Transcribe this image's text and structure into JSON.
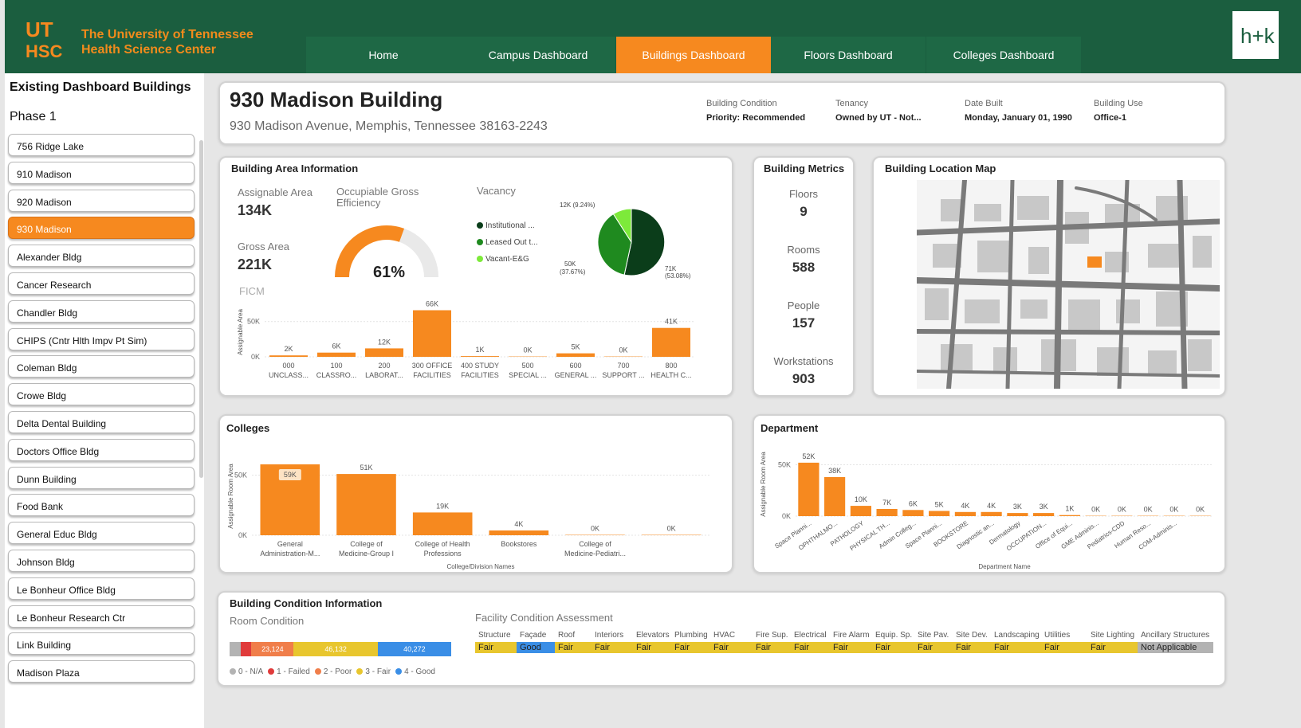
{
  "header": {
    "org_name_line1": "The University of Tennessee",
    "org_name_line2": "Health Science Center",
    "logo_text_top": "UT",
    "logo_text_bottom": "HSC",
    "hok_logo": "h+k",
    "nav": [
      {
        "label": "Home",
        "active": false
      },
      {
        "label": "Campus Dashboard",
        "active": false
      },
      {
        "label": "Buildings Dashboard",
        "active": true
      },
      {
        "label": "Floors Dashboard",
        "active": false
      },
      {
        "label": "Colleges Dashboard",
        "active": false
      }
    ]
  },
  "sidebar": {
    "title": "Existing Dashboard Buildings",
    "phase": "Phase 1",
    "items": [
      {
        "label": "756 Ridge Lake",
        "active": false
      },
      {
        "label": "910 Madison",
        "active": false
      },
      {
        "label": "920 Madison",
        "active": false
      },
      {
        "label": "930 Madison",
        "active": true
      },
      {
        "label": "Alexander Bldg",
        "active": false
      },
      {
        "label": "Cancer Research",
        "active": false
      },
      {
        "label": "Chandler Bldg",
        "active": false
      },
      {
        "label": "CHIPS (Cntr Hlth Impv Pt Sim)",
        "active": false
      },
      {
        "label": "Coleman Bldg",
        "active": false
      },
      {
        "label": "Crowe Bldg",
        "active": false
      },
      {
        "label": "Delta Dental Building",
        "active": false
      },
      {
        "label": "Doctors Office Bldg",
        "active": false
      },
      {
        "label": "Dunn Building",
        "active": false
      },
      {
        "label": "Food Bank",
        "active": false
      },
      {
        "label": "General Educ Bldg",
        "active": false
      },
      {
        "label": "Johnson Bldg",
        "active": false
      },
      {
        "label": "Le Bonheur Office Bldg",
        "active": false
      },
      {
        "label": "Le Bonheur Research Ctr",
        "active": false
      },
      {
        "label": "Link Building",
        "active": false
      },
      {
        "label": "Madison Plaza",
        "active": false
      }
    ]
  },
  "building": {
    "name": "930 Madison Building",
    "address": "930 Madison Avenue, Memphis, Tennessee 38163-2243",
    "condition_label": "Building Condition",
    "condition_value": "Priority: Recommended",
    "tenancy_label": "Tenancy",
    "tenancy_value": "Owned by UT - Not...",
    "date_label": "Date Built",
    "date_value": "Monday, January 01, 1990",
    "use_label": "Building Use",
    "use_value": "Office-1"
  },
  "area": {
    "title": "Building Area Information",
    "assignable_label": "Assignable Area",
    "assignable_value": "134K",
    "gross_label": "Gross Area",
    "gross_value": "221K",
    "efficiency_label": "Occupiable Gross Efficiency",
    "efficiency_value": "61%",
    "efficiency_fraction": 0.61,
    "vacancy_label": "Vacancy",
    "vacancy_legend": [
      {
        "label": "Institutional ...",
        "color": "#0b3d1a"
      },
      {
        "label": "Leased Out t...",
        "color": "#1f8a1f"
      },
      {
        "label": "Vacant-E&G",
        "color": "#7dea3a"
      }
    ],
    "vacancy_slices": [
      {
        "value": 71,
        "label": "71K",
        "pct": "(53.08%)",
        "color": "#0b3d1a"
      },
      {
        "value": 50,
        "label": "50K",
        "pct": "(37.67%)",
        "color": "#1f8a1f"
      },
      {
        "value": 12,
        "label": "12K (9.24%)",
        "color": "#7dea3a"
      }
    ],
    "ficm_label": "FICM"
  },
  "metrics": {
    "title": "Building Metrics",
    "floors_label": "Floors",
    "floors_value": "9",
    "rooms_label": "Rooms",
    "rooms_value": "588",
    "people_label": "People",
    "people_value": "157",
    "workstations_label": "Workstations",
    "workstations_value": "903"
  },
  "map": {
    "title": "Building Location Map"
  },
  "colleges": {
    "title": "Colleges"
  },
  "department": {
    "title": "Department"
  },
  "condition": {
    "title": "Building Condition Information",
    "room_condition_label": "Room Condition",
    "room_bar": [
      {
        "value": 6000,
        "label": "",
        "color": "#b3b3b3"
      },
      {
        "value": 6000,
        "label": "",
        "color": "#e03b3b"
      },
      {
        "value": 23124,
        "label": "23,124",
        "color": "#f07e4a"
      },
      {
        "value": 46132,
        "label": "46,132",
        "color": "#e8c62e"
      },
      {
        "value": 40272,
        "label": "40,272",
        "color": "#3a8ee6"
      }
    ],
    "room_legend": [
      {
        "label": "0 - N/A",
        "color": "#b3b3b3"
      },
      {
        "label": "1 - Failed",
        "color": "#e03b3b"
      },
      {
        "label": "2 - Poor",
        "color": "#f07e4a"
      },
      {
        "label": "3 - Fair",
        "color": "#e8c62e"
      },
      {
        "label": "4 - Good",
        "color": "#3a8ee6"
      }
    ],
    "fca_label": "Facility Condition Assessment",
    "fca": [
      {
        "header": "Structure",
        "value": "Fair",
        "color": "#e8c62e"
      },
      {
        "header": "Façade",
        "value": "Good",
        "color": "#3a8ee6"
      },
      {
        "header": "Roof",
        "value": "Fair",
        "color": "#e8c62e"
      },
      {
        "header": "Interiors",
        "value": "Fair",
        "color": "#e8c62e"
      },
      {
        "header": "Elevators",
        "value": "Fair",
        "color": "#e8c62e"
      },
      {
        "header": "Plumbing",
        "value": "Fair",
        "color": "#e8c62e"
      },
      {
        "header": "HVAC",
        "value": "Fair",
        "color": "#e8c62e"
      },
      {
        "header": "Fire Sup.",
        "value": "Fair",
        "color": "#e8c62e"
      },
      {
        "header": "Electrical",
        "value": "Fair",
        "color": "#e8c62e"
      },
      {
        "header": "Fire Alarm",
        "value": "Fair",
        "color": "#e8c62e"
      },
      {
        "header": "Equip. Sp.",
        "value": "Fair",
        "color": "#e8c62e"
      },
      {
        "header": "Site Pav.",
        "value": "Fair",
        "color": "#e8c62e"
      },
      {
        "header": "Site Dev.",
        "value": "Fair",
        "color": "#e8c62e"
      },
      {
        "header": "Landscaping",
        "value": "Fair",
        "color": "#e8c62e"
      },
      {
        "header": "Utilities",
        "value": "Fair",
        "color": "#e8c62e"
      },
      {
        "header": "Site Lighting",
        "value": "Fair",
        "color": "#e8c62e"
      },
      {
        "header": "Ancillary Structures",
        "value": "Not Applicable",
        "color": "#b3b3b3"
      }
    ]
  },
  "chart_data": [
    {
      "id": "ficm",
      "type": "bar",
      "title": "FICM",
      "ylabel": "Assignable Area",
      "xlabel": "",
      "ylim": [
        0,
        70000
      ],
      "yticks": [
        {
          "value": 0,
          "label": "0K"
        },
        {
          "value": 50000,
          "label": "50K"
        }
      ],
      "categories": [
        [
          "000",
          "UNCLASS..."
        ],
        [
          "100",
          "CLASSRO..."
        ],
        [
          "200",
          "LABORAT..."
        ],
        [
          "300 OFFICE",
          "FACILITIES"
        ],
        [
          "400 STUDY",
          "FACILITIES"
        ],
        [
          "500",
          "SPECIAL ..."
        ],
        [
          "600",
          "GENERAL ..."
        ],
        [
          "700",
          "SUPPORT ..."
        ],
        [
          "800",
          "HEALTH C..."
        ]
      ],
      "values": [
        2000,
        6000,
        12000,
        66000,
        1000,
        400,
        5000,
        400,
        41000
      ],
      "labels": [
        "2K",
        "6K",
        "12K",
        "66K",
        "1K",
        "0K",
        "5K",
        "0K",
        "41K"
      ]
    },
    {
      "id": "colleges",
      "type": "bar",
      "title": "Colleges",
      "ylabel": "Assignable Room Area",
      "xlabel": "College/Division Names",
      "ylim": [
        0,
        65000
      ],
      "yticks": [
        {
          "value": 0,
          "label": "0K"
        },
        {
          "value": 50000,
          "label": "50K"
        }
      ],
      "categories": [
        [
          "General",
          "Administration-M..."
        ],
        [
          "College of",
          "Medicine-Group I"
        ],
        [
          "College of Health",
          "Professions"
        ],
        [
          "Bookstores"
        ],
        [
          "College of",
          "Medicine-Pediatri..."
        ],
        [
          ""
        ]
      ],
      "values": [
        59000,
        51000,
        19000,
        4000,
        300,
        300
      ],
      "labels": [
        "59K",
        "51K",
        "19K",
        "4K",
        "0K",
        "0K"
      ]
    },
    {
      "id": "department",
      "type": "bar",
      "title": "Department",
      "ylabel": "Assignable Room Area",
      "xlabel": "Department Name",
      "ylim": [
        0,
        62000
      ],
      "yticks": [
        {
          "value": 0,
          "label": "0K"
        },
        {
          "value": 50000,
          "label": "50K"
        }
      ],
      "categories": [
        "Space Planni...",
        "OPHTHALMO...",
        "PATHOLOGY",
        "PHYSICAL TH...",
        "Admin Colleg...",
        "Space Planni...",
        "BOOKSTORE",
        "Diagnostic an...",
        "Dermatology",
        "OCCUPATION...",
        "Office of Equi...",
        "GME Adminis...",
        "Pediatrics-CDD",
        "Human Reso...",
        "COM-Adminis...",
        ""
      ],
      "values": [
        52000,
        38000,
        10000,
        7000,
        6000,
        5000,
        4000,
        4000,
        3000,
        3000,
        1000,
        300,
        300,
        300,
        300,
        300
      ],
      "labels": [
        "52K",
        "38K",
        "10K",
        "7K",
        "6K",
        "5K",
        "4K",
        "4K",
        "3K",
        "3K",
        "1K",
        "0K",
        "0K",
        "0K",
        "0K",
        "0K"
      ]
    }
  ]
}
